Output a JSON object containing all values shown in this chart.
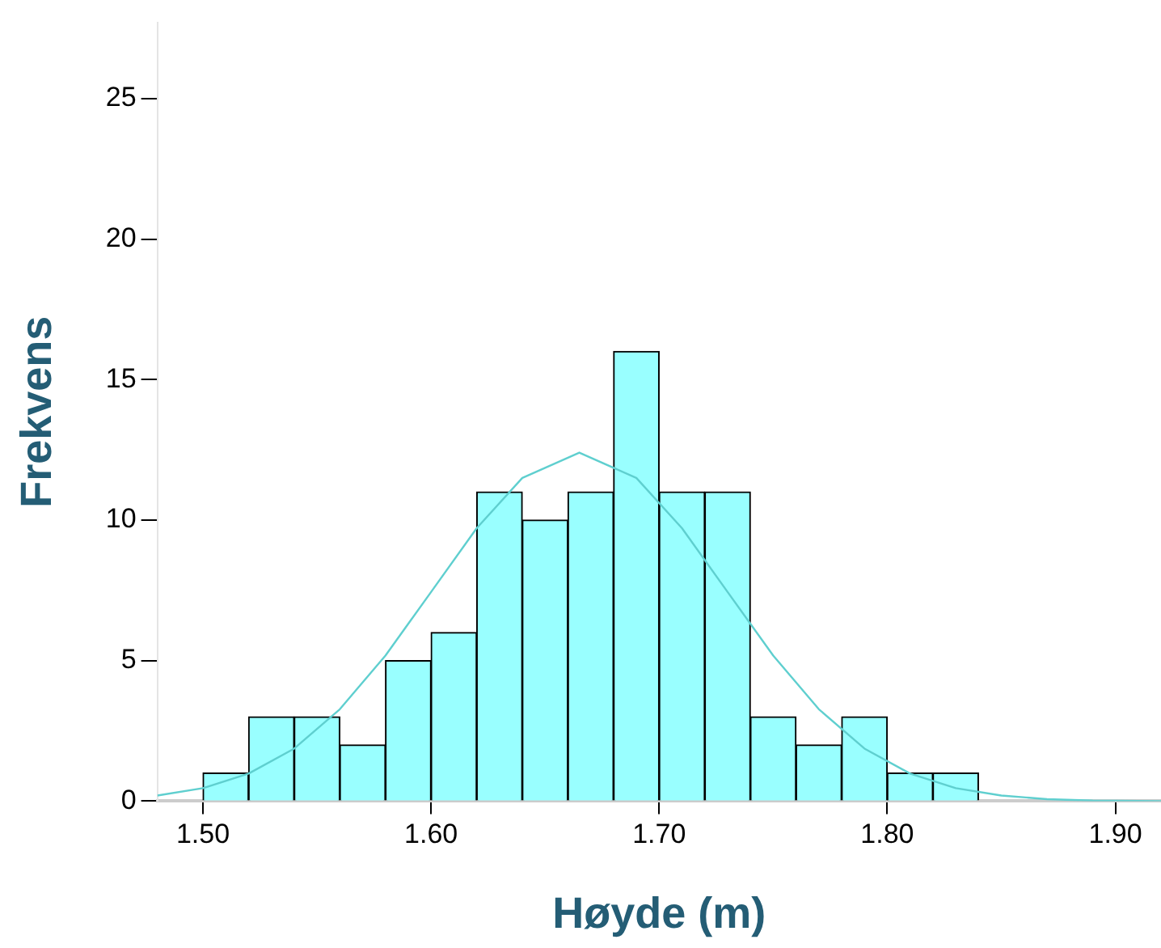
{
  "chart_data": {
    "type": "histogram",
    "xlabel": "Høyde (m)",
    "ylabel": "Frekvens",
    "series": [
      {
        "color": "#99ffff",
        "bins": [
          1.5,
          1.52,
          1.54,
          1.56,
          1.58,
          1.6,
          1.62,
          1.64,
          1.66,
          1.68,
          1.7,
          1.72,
          1.74,
          1.76,
          1.78,
          1.8,
          1.82,
          1.84
        ],
        "values": [
          1,
          3,
          3,
          2,
          5,
          6,
          11,
          10,
          11,
          16,
          11,
          11,
          3,
          2,
          3,
          1,
          1
        ]
      },
      {
        "type": "line",
        "color": "#5fcfcf",
        "x": [
          1.48,
          1.5,
          1.52,
          1.54,
          1.56,
          1.58,
          1.6,
          1.62,
          1.64,
          1.665,
          1.69,
          1.71,
          1.73,
          1.75,
          1.77,
          1.79,
          1.81,
          1.83,
          1.85,
          1.87,
          1.89,
          1.92
        ],
        "values": [
          0.2,
          0.46,
          0.98,
          1.87,
          3.27,
          5.18,
          7.44,
          9.71,
          11.5,
          12.4,
          11.5,
          9.71,
          7.44,
          5.18,
          3.27,
          1.87,
          0.98,
          0.46,
          0.2,
          0.07,
          0.02,
          0
        ]
      }
    ],
    "xlim": [
      1.48,
      1.92
    ],
    "xticks": [
      {
        "value": 1.5,
        "label": "1.50"
      },
      {
        "value": 1.6,
        "label": "1.60"
      },
      {
        "value": 1.7,
        "label": "1.70"
      },
      {
        "value": 1.8,
        "label": "1.80"
      },
      {
        "value": 1.9,
        "label": "1.90"
      }
    ],
    "ylim": [
      0,
      27.7
    ],
    "yticks": [
      0,
      5,
      10,
      15,
      20,
      25
    ],
    "grid": false,
    "legend": false
  }
}
